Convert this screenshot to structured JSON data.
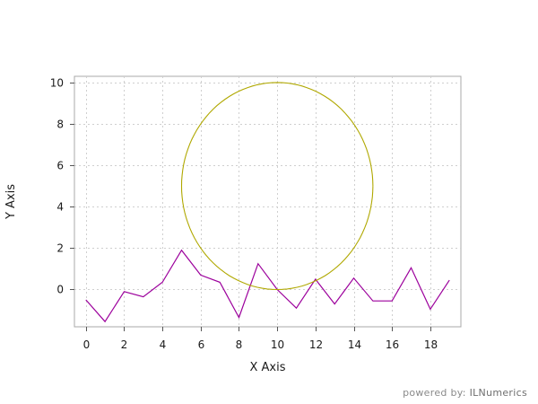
{
  "chart_data": {
    "type": "line",
    "xlabel": "X Axis",
    "ylabel": "Y Axis",
    "xlim": [
      -0.6,
      19.6
    ],
    "ylim": [
      -1.8,
      10.3
    ],
    "xticks": [
      0,
      2,
      4,
      6,
      8,
      10,
      12,
      14,
      16,
      18
    ],
    "yticks": [
      0,
      2,
      4,
      6,
      8,
      10
    ],
    "grid": true,
    "series": [
      {
        "kind": "line",
        "color": "#9c009c",
        "x": [
          0,
          1,
          2,
          3,
          4,
          5,
          6,
          7,
          8,
          9,
          10,
          11,
          12,
          13,
          14,
          15,
          16,
          17,
          18,
          19
        ],
        "y": [
          -0.5,
          -1.55,
          -0.1,
          -0.35,
          0.35,
          1.9,
          0.7,
          0.35,
          -1.35,
          1.25,
          0.0,
          -0.9,
          0.5,
          -0.7,
          0.55,
          -0.55,
          -0.55,
          1.05,
          -0.95,
          0.45
        ]
      },
      {
        "kind": "circle",
        "color": "#b0a800",
        "center": [
          10,
          5
        ],
        "radius": 5
      }
    ]
  },
  "watermark": {
    "prefix": "powered by: ",
    "brand": "ILNumerics"
  }
}
